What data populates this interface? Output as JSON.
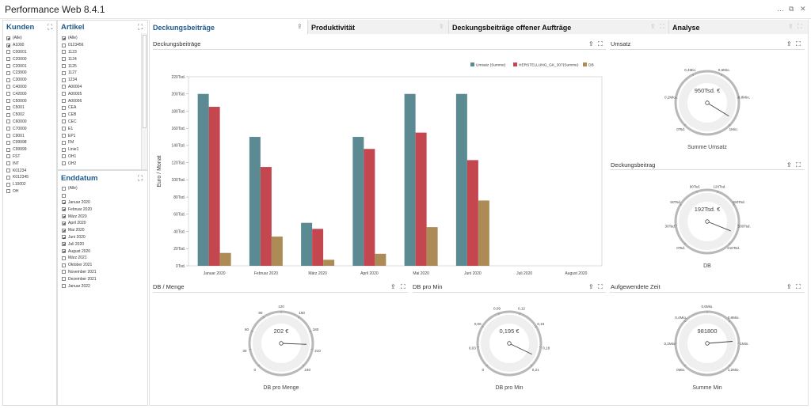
{
  "app": {
    "title": "Performance Web  8.4.1",
    "window_controls": [
      "…",
      "⧉",
      "✕"
    ]
  },
  "kunden": {
    "title": "Kunden",
    "items": [
      {
        "label": "(Alle)",
        "checked": true
      },
      {
        "label": "A1000",
        "checked": true
      },
      {
        "label": "C00001",
        "checked": false
      },
      {
        "label": "C20000",
        "checked": false
      },
      {
        "label": "C20001",
        "checked": false
      },
      {
        "label": "C23900",
        "checked": false
      },
      {
        "label": "C30000",
        "checked": false
      },
      {
        "label": "C40000",
        "checked": false
      },
      {
        "label": "C42000",
        "checked": false
      },
      {
        "label": "C50000",
        "checked": false
      },
      {
        "label": "C5001",
        "checked": false
      },
      {
        "label": "C5002",
        "checked": false
      },
      {
        "label": "C60000",
        "checked": false
      },
      {
        "label": "C70000",
        "checked": false
      },
      {
        "label": "C9001",
        "checked": false
      },
      {
        "label": "C99998",
        "checked": false
      },
      {
        "label": "C99999",
        "checked": false
      },
      {
        "label": "FST",
        "checked": false
      },
      {
        "label": "INT",
        "checked": false
      },
      {
        "label": "K01234",
        "checked": false
      },
      {
        "label": "K012345",
        "checked": false
      },
      {
        "label": "L10002",
        "checked": false
      },
      {
        "label": "OH",
        "checked": false
      }
    ]
  },
  "artikel": {
    "title": "Artikel",
    "items": [
      {
        "label": "(Alle)",
        "checked": true
      },
      {
        "label": "0123456",
        "checked": false
      },
      {
        "label": "1123",
        "checked": false
      },
      {
        "label": "1124",
        "checked": false
      },
      {
        "label": "1125",
        "checked": false
      },
      {
        "label": "1127",
        "checked": false
      },
      {
        "label": "1234",
        "checked": false
      },
      {
        "label": "A00004",
        "checked": false
      },
      {
        "label": "A00005",
        "checked": false
      },
      {
        "label": "A00006",
        "checked": false
      },
      {
        "label": "CEA",
        "checked": false
      },
      {
        "label": "CEB",
        "checked": false
      },
      {
        "label": "CEC",
        "checked": false
      },
      {
        "label": "E1",
        "checked": false
      },
      {
        "label": "EP1",
        "checked": false
      },
      {
        "label": "FM",
        "checked": false
      },
      {
        "label": "Linie1",
        "checked": false
      },
      {
        "label": "OH1",
        "checked": false
      },
      {
        "label": "OH2",
        "checked": false
      }
    ]
  },
  "enddatum": {
    "title": "Enddatum",
    "items": [
      {
        "label": "(Alle)",
        "checked": false
      },
      {
        "label": "",
        "checked": false
      },
      {
        "label": "Januar 2020",
        "checked": true
      },
      {
        "label": "Februar 2020",
        "checked": true
      },
      {
        "label": "März 2020",
        "checked": true
      },
      {
        "label": "April 2020",
        "checked": true
      },
      {
        "label": "Mai 2020",
        "checked": true
      },
      {
        "label": "Juni 2020",
        "checked": true
      },
      {
        "label": "Juli 2020",
        "checked": true
      },
      {
        "label": "August 2020",
        "checked": true
      },
      {
        "label": "März 2021",
        "checked": false
      },
      {
        "label": "Oktober 2021",
        "checked": false
      },
      {
        "label": "November 2021",
        "checked": false
      },
      {
        "label": "Dezember 2021",
        "checked": false
      },
      {
        "label": "Januar 2022",
        "checked": false
      }
    ]
  },
  "tabs": [
    {
      "label": "Deckungsbeiträge",
      "active": true
    },
    {
      "label": "Produktivität",
      "active": false
    },
    {
      "label": "Deckungsbeiträge offener Aufträge",
      "active": false
    },
    {
      "label": "Analyse",
      "active": false
    }
  ],
  "sections": {
    "db": "Deckungsbeiträge",
    "umsatz": "Umsatz",
    "deckungsbeitrag": "Deckungsbeitrag",
    "db_menge": "DB / Menge",
    "db_min": "DB pro Min",
    "zeit": "Aufgewendete Zeit"
  },
  "chart_data": {
    "type": "bar",
    "title": "Deckungsbeiträge",
    "ylabel": "Euro / Monat",
    "xlabel": "",
    "categories": [
      "Januar 2020",
      "Februar 2020",
      "März 2020",
      "April 2020",
      "Mai 2020",
      "Juni 2020",
      "Juli 2020",
      "August 2020"
    ],
    "y_ticks": [
      "0Tsd.",
      "20Tsd.",
      "40Tsd.",
      "60Tsd.",
      "80Tsd.",
      "100Tsd.",
      "120Tsd.",
      "140Tsd.",
      "160Tsd.",
      "180Tsd.",
      "200Tsd.",
      "220Tsd."
    ],
    "ylim": [
      0,
      220
    ],
    "legend_position": "top-right",
    "grid": false,
    "series": [
      {
        "name": "Umsatz (Summe)",
        "color": "#5b8a93",
        "values": [
          200,
          150,
          50,
          150,
          200,
          200,
          0,
          0
        ]
      },
      {
        "name": "HERSTELLUNG_GK_307(Summe)",
        "color": "#c4464f",
        "values": [
          185,
          115,
          43,
          136,
          155,
          123,
          0,
          0
        ]
      },
      {
        "name": "DB",
        "color": "#ad8b57",
        "values": [
          15,
          34,
          7,
          14,
          45,
          76,
          0,
          0
        ]
      }
    ]
  },
  "gauges": [
    {
      "id": "umsatz",
      "value": "950Tsd. €",
      "label": "Summe Umsatz",
      "ticks": [
        "0Tsd.",
        "0,2Mio.",
        "0,4Mio.",
        "0,6Mio.",
        "0,8Mio.",
        "1Mio."
      ],
      "min": 0,
      "max": 1000,
      "val": 950
    },
    {
      "id": "deckungsbeitrag",
      "value": "192Tsd. €",
      "label": "DB",
      "ticks": [
        "0Tsd.",
        "30Tsd.",
        "60Tsd.",
        "90Tsd.",
        "120Tsd.",
        "150Tsd.",
        "180Tsd.",
        "210Tsd."
      ],
      "min": 0,
      "max": 210,
      "val": 192
    },
    {
      "id": "db_menge",
      "value": "202 €",
      "label": "DB pro Menge",
      "ticks": [
        "0",
        "30",
        "60",
        "90",
        "120",
        "150",
        "180",
        "210",
        "240"
      ],
      "min": 0,
      "max": 240,
      "val": 202
    },
    {
      "id": "db_min",
      "value": "0,195 €",
      "label": "DB pro Min",
      "ticks": [
        "0",
        "0,03",
        "0,06",
        "0,09",
        "0,12",
        "0,15",
        "0,18",
        "0,21"
      ],
      "min": 0,
      "max": 0.21,
      "val": 0.195
    },
    {
      "id": "zeit",
      "value": "981800",
      "label": "Summe Min",
      "ticks": [
        "0Mio.",
        "0,2Mio.",
        "0,4Mio.",
        "0,6Mio.",
        "0,8Mio.",
        "1Mio.",
        "1,2Mio."
      ],
      "min": 0,
      "max": 1.2,
      "val": 0.98
    }
  ],
  "icons": {
    "expand": "⛶",
    "export": "⇪"
  }
}
